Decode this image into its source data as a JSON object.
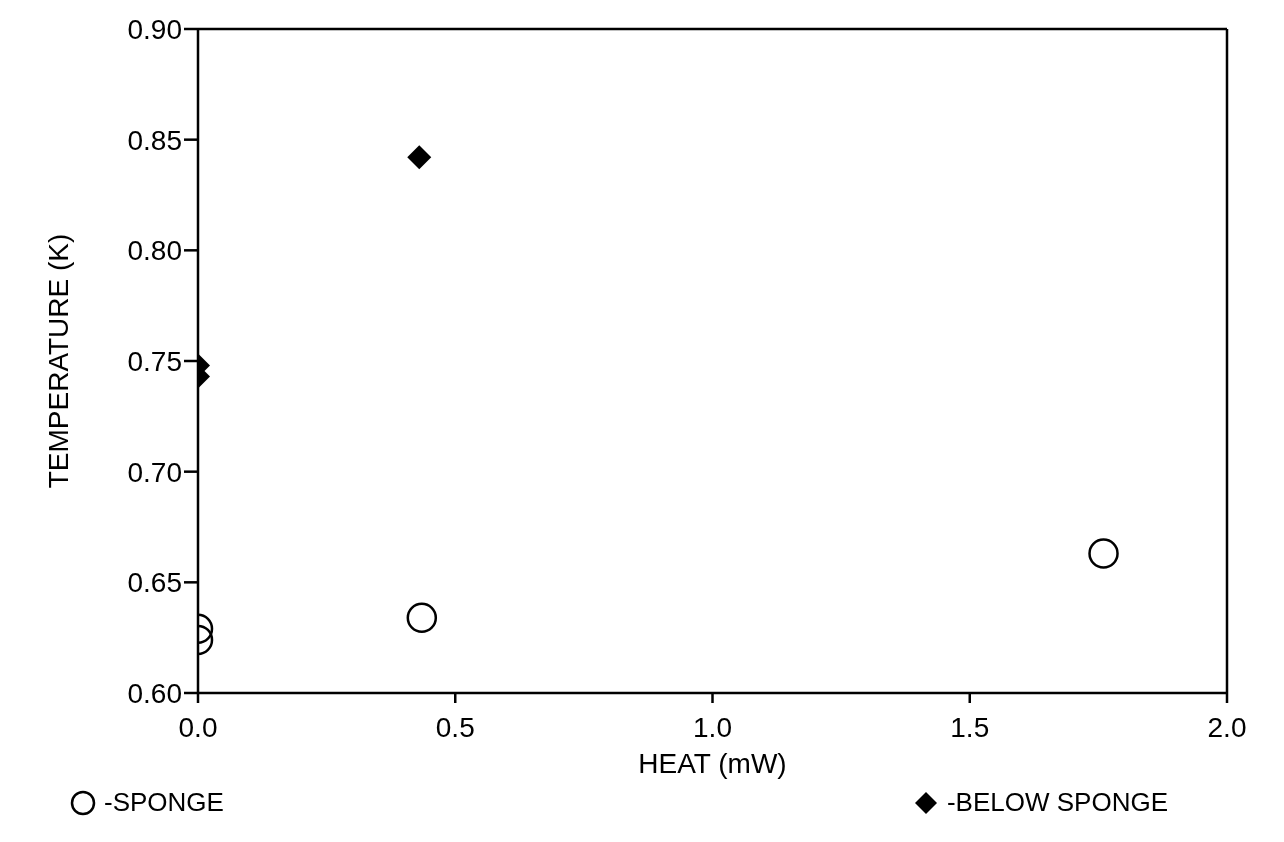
{
  "chart_data": {
    "type": "scatter",
    "xlabel": "HEAT (mW)",
    "ylabel": "TEMPERATURE (K)",
    "xlim": [
      0,
      2
    ],
    "xticks": [
      {
        "value": 0,
        "label": "0.0"
      },
      {
        "value": 0.5,
        "label": "0.5"
      },
      {
        "value": 1,
        "label": "1.0"
      },
      {
        "value": 1.5,
        "label": "1.5"
      },
      {
        "value": 2,
        "label": "2.0"
      }
    ],
    "ylim": [
      0.6,
      0.9
    ],
    "yticks": [
      {
        "value": 0.6,
        "label": "0.60"
      },
      {
        "value": 0.65,
        "label": "0.65"
      },
      {
        "value": 0.7,
        "label": "0.70"
      },
      {
        "value": 0.75,
        "label": "0.75"
      },
      {
        "value": 0.8,
        "label": "0.80"
      },
      {
        "value": 0.85,
        "label": "0.85"
      },
      {
        "value": 0.9,
        "label": "0.90"
      }
    ],
    "legend": "bottom",
    "series": [
      {
        "name": "-SPONGE",
        "color": "#000000",
        "marker": "circle",
        "x": [
          0,
          0,
          0.435,
          1.76
        ],
        "values": [
          0.629,
          0.624,
          0.634,
          0.663
        ]
      },
      {
        "name": "-BELOW SPONGE",
        "color": "#000000",
        "marker": "diamond",
        "x": [
          0,
          0,
          0.43
        ],
        "values": [
          0.748,
          0.743,
          0.842
        ]
      }
    ]
  }
}
